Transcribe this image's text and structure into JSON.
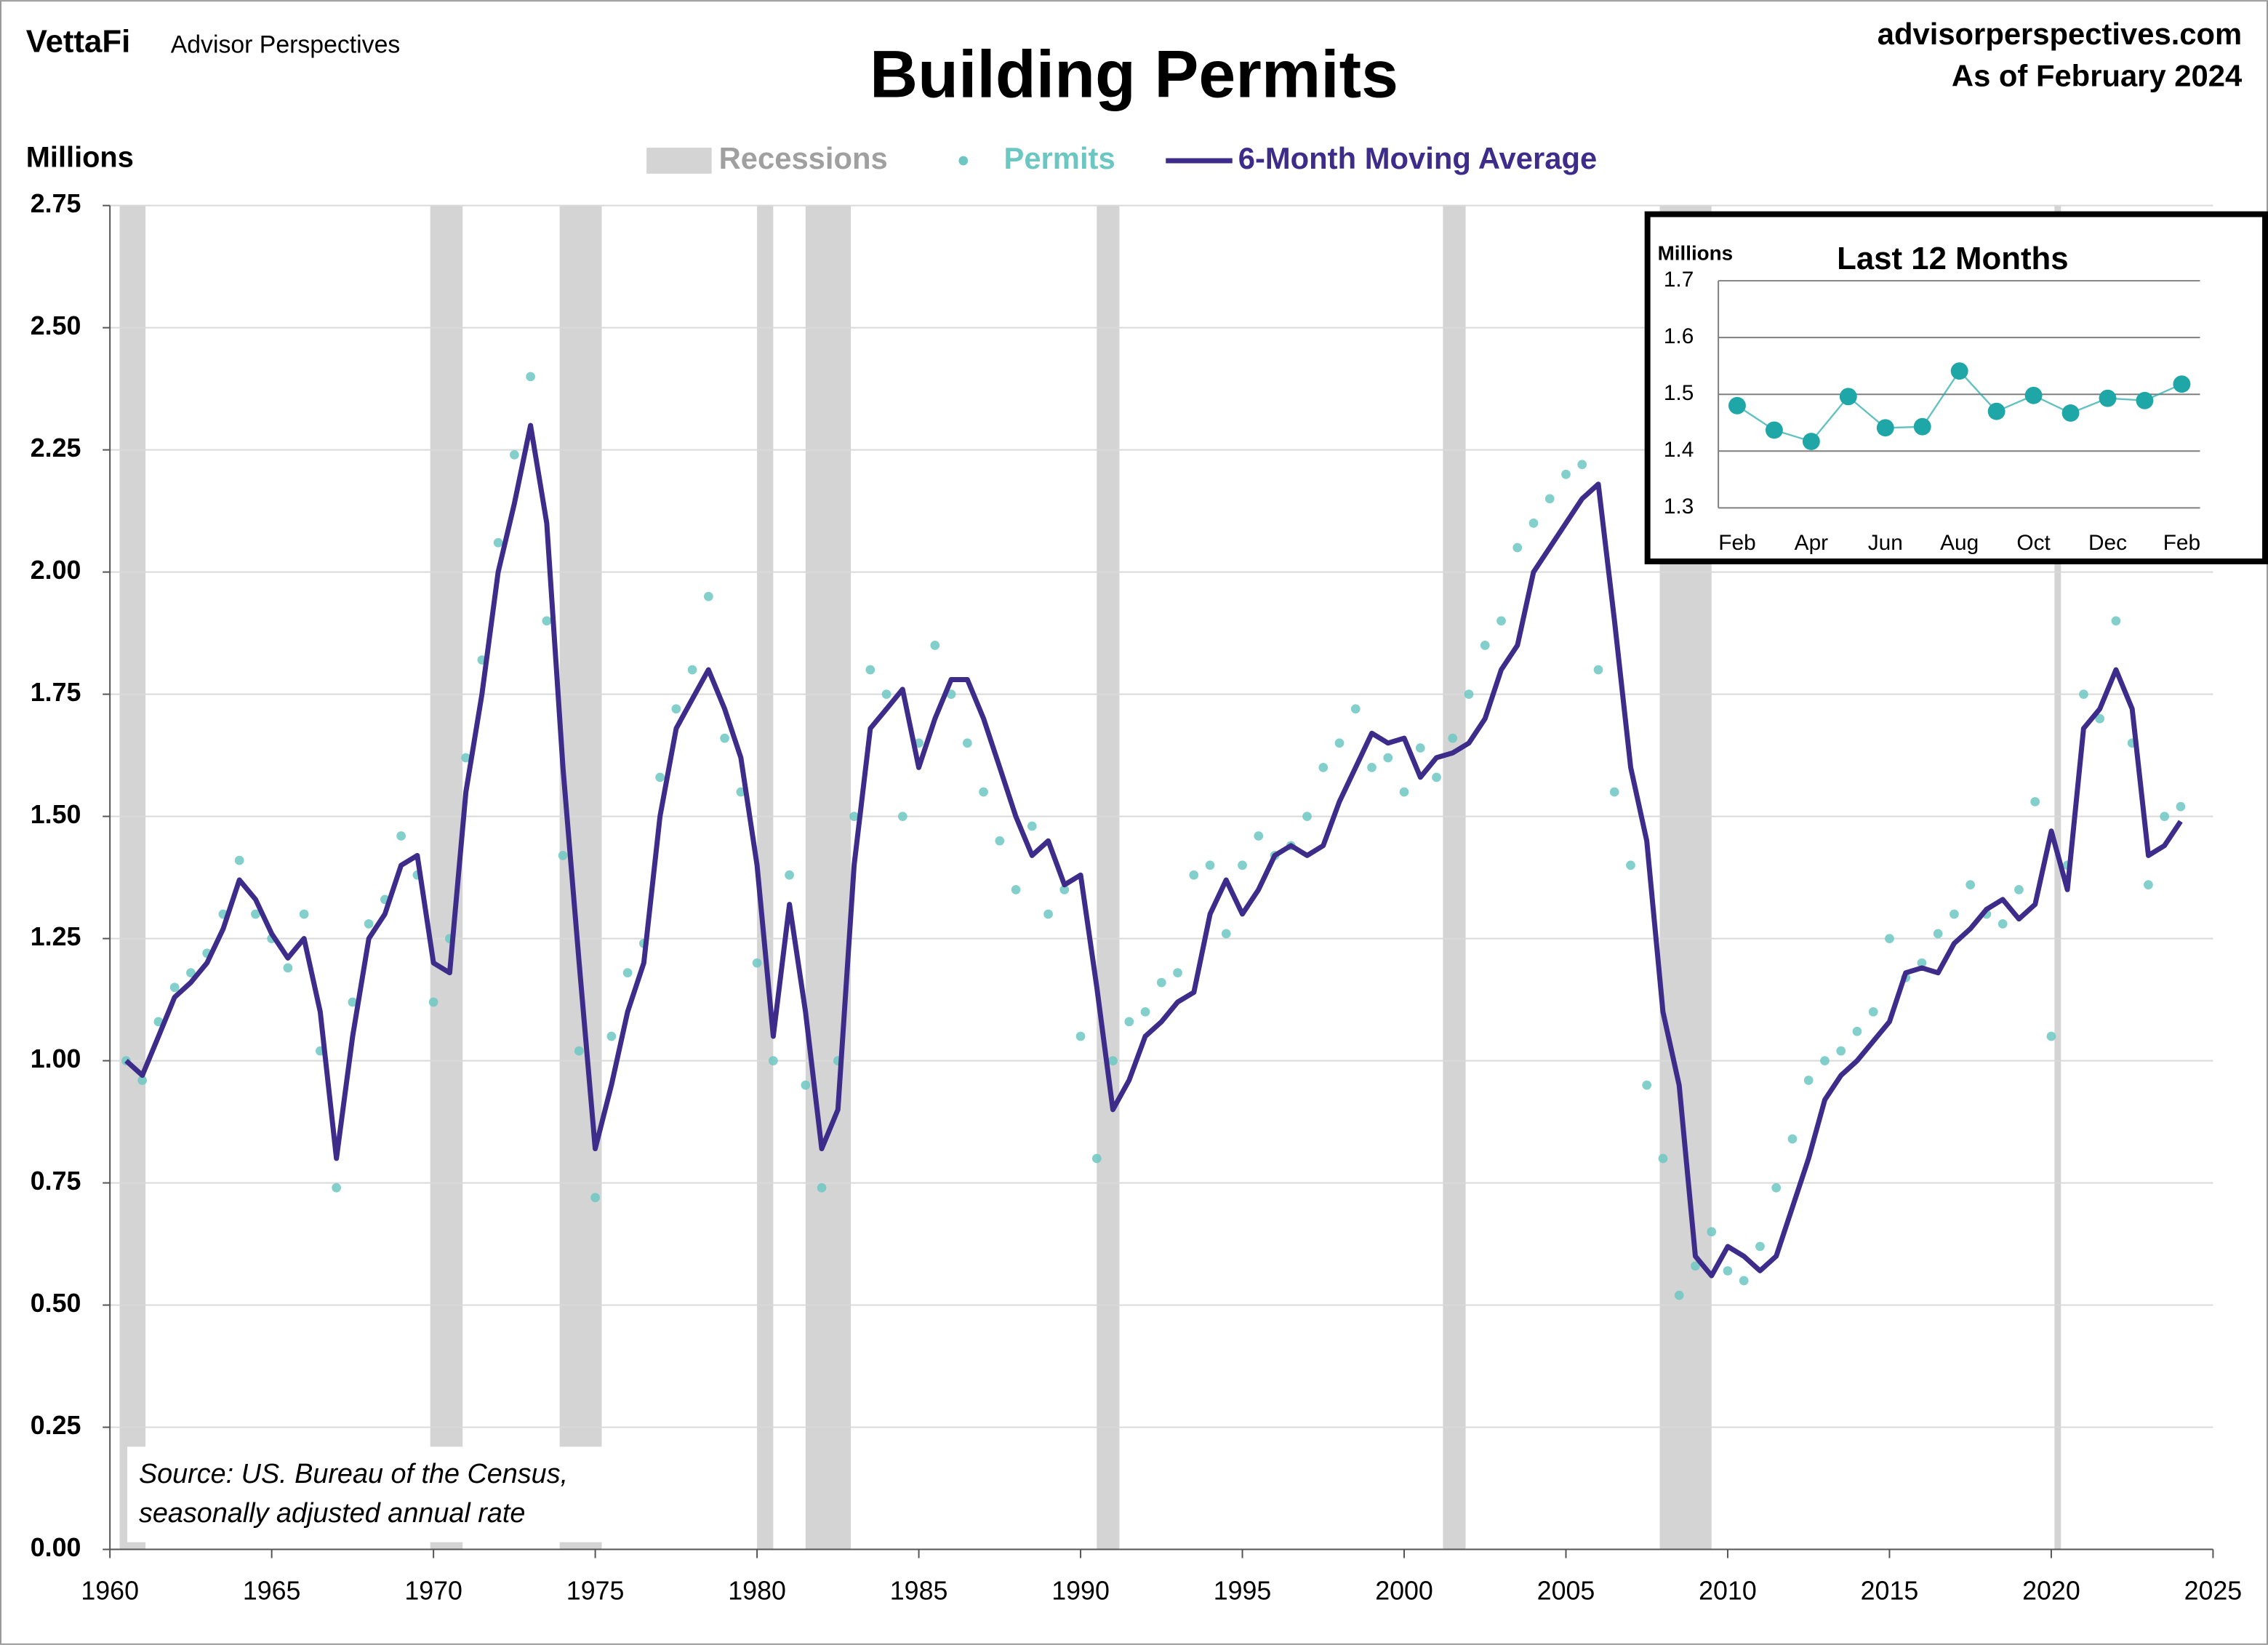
{
  "chart_data": {
    "type": "scatter-line",
    "title": "Building Permits",
    "brand": "VettaFi",
    "brand_sub": "Advisor Perspectives",
    "site": "advisorperspectives.com",
    "as_of": "As of February 2024",
    "ylabel": "Millions",
    "source_lines": [
      "Source: US. Bureau of the Census,",
      "seasonally adjusted annual rate"
    ],
    "recessions": {
      "name": "Recessions",
      "color": "#d4d4d4",
      "spans": [
        [
          1960.3,
          1961.1
        ],
        [
          1969.9,
          1970.9
        ],
        [
          1973.9,
          1975.2
        ],
        [
          1980.0,
          1980.5
        ],
        [
          1981.5,
          1982.9
        ],
        [
          1990.5,
          1991.2
        ],
        [
          2001.2,
          2001.9
        ],
        [
          2007.9,
          2009.5
        ],
        [
          2020.1,
          2020.3
        ]
      ]
    },
    "x": [
      1960.5,
      1961.0,
      1961.5,
      1962.0,
      1962.5,
      1963.0,
      1963.5,
      1964.0,
      1964.5,
      1965.0,
      1965.5,
      1966.0,
      1966.5,
      1967.0,
      1967.5,
      1968.0,
      1968.5,
      1969.0,
      1969.5,
      1970.0,
      1970.5,
      1971.0,
      1971.5,
      1972.0,
      1972.5,
      1973.0,
      1973.5,
      1974.0,
      1974.5,
      1975.0,
      1975.5,
      1976.0,
      1976.5,
      1977.0,
      1977.5,
      1978.0,
      1978.5,
      1979.0,
      1979.5,
      1980.0,
      1980.5,
      1981.0,
      1981.5,
      1982.0,
      1982.5,
      1983.0,
      1983.5,
      1984.0,
      1984.5,
      1985.0,
      1985.5,
      1986.0,
      1986.5,
      1987.0,
      1987.5,
      1988.0,
      1988.5,
      1989.0,
      1989.5,
      1990.0,
      1990.5,
      1991.0,
      1991.5,
      1992.0,
      1992.5,
      1993.0,
      1993.5,
      1994.0,
      1994.5,
      1995.0,
      1995.5,
      1996.0,
      1996.5,
      1997.0,
      1997.5,
      1998.0,
      1998.5,
      1999.0,
      1999.5,
      2000.0,
      2000.5,
      2001.0,
      2001.5,
      2002.0,
      2002.5,
      2003.0,
      2003.5,
      2004.0,
      2004.5,
      2005.0,
      2005.5,
      2006.0,
      2006.5,
      2007.0,
      2007.5,
      2008.0,
      2008.5,
      2009.0,
      2009.5,
      2010.0,
      2010.5,
      2011.0,
      2011.5,
      2012.0,
      2012.5,
      2013.0,
      2013.5,
      2014.0,
      2014.5,
      2015.0,
      2015.5,
      2016.0,
      2016.5,
      2017.0,
      2017.5,
      2018.0,
      2018.5,
      2019.0,
      2019.5,
      2020.0,
      2020.5,
      2021.0,
      2021.5,
      2022.0,
      2022.5,
      2023.0,
      2023.5,
      2024.0
    ],
    "series": [
      {
        "name": "Permits",
        "color": "#6cc7c3",
        "values": [
          1.0,
          0.96,
          1.08,
          1.15,
          1.18,
          1.22,
          1.3,
          1.41,
          1.3,
          1.25,
          1.19,
          1.3,
          1.02,
          0.74,
          1.12,
          1.28,
          1.33,
          1.46,
          1.38,
          1.12,
          1.25,
          1.62,
          1.82,
          2.06,
          2.24,
          2.4,
          1.9,
          1.42,
          1.02,
          0.72,
          1.05,
          1.18,
          1.24,
          1.58,
          1.72,
          1.8,
          1.95,
          1.66,
          1.55,
          1.2,
          1.0,
          1.38,
          0.95,
          0.74,
          1.0,
          1.5,
          1.8,
          1.75,
          1.5,
          1.65,
          1.85,
          1.75,
          1.65,
          1.55,
          1.45,
          1.35,
          1.48,
          1.3,
          1.35,
          1.05,
          0.8,
          1.0,
          1.08,
          1.1,
          1.16,
          1.18,
          1.38,
          1.4,
          1.26,
          1.4,
          1.46,
          1.42,
          1.44,
          1.5,
          1.6,
          1.65,
          1.72,
          1.6,
          1.62,
          1.55,
          1.64,
          1.58,
          1.66,
          1.75,
          1.85,
          1.9,
          2.05,
          2.1,
          2.15,
          2.2,
          2.22,
          1.8,
          1.55,
          1.4,
          0.95,
          0.8,
          0.52,
          0.58,
          0.65,
          0.57,
          0.55,
          0.62,
          0.74,
          0.84,
          0.96,
          1.0,
          1.02,
          1.06,
          1.1,
          1.25,
          1.17,
          1.2,
          1.26,
          1.3,
          1.36,
          1.3,
          1.28,
          1.35,
          1.53,
          1.05,
          1.4,
          1.75,
          1.7,
          1.9,
          1.65,
          1.36,
          1.5,
          1.52
        ]
      },
      {
        "name": "6-Month Moving Average",
        "color": "#3d2c8a",
        "values": [
          1.0,
          0.97,
          1.05,
          1.13,
          1.16,
          1.2,
          1.27,
          1.37,
          1.33,
          1.26,
          1.21,
          1.25,
          1.1,
          0.8,
          1.05,
          1.25,
          1.3,
          1.4,
          1.42,
          1.2,
          1.18,
          1.55,
          1.75,
          2.0,
          2.14,
          2.3,
          2.1,
          1.6,
          1.2,
          0.82,
          0.95,
          1.1,
          1.2,
          1.5,
          1.68,
          1.74,
          1.8,
          1.72,
          1.62,
          1.4,
          1.05,
          1.32,
          1.1,
          0.82,
          0.9,
          1.4,
          1.68,
          1.72,
          1.76,
          1.6,
          1.7,
          1.78,
          1.78,
          1.7,
          1.6,
          1.5,
          1.42,
          1.45,
          1.36,
          1.38,
          1.15,
          0.9,
          0.96,
          1.05,
          1.08,
          1.12,
          1.14,
          1.3,
          1.37,
          1.3,
          1.35,
          1.42,
          1.44,
          1.42,
          1.44,
          1.53,
          1.6,
          1.67,
          1.65,
          1.66,
          1.58,
          1.62,
          1.63,
          1.65,
          1.7,
          1.8,
          1.85,
          2.0,
          2.05,
          2.1,
          2.15,
          2.18,
          1.9,
          1.6,
          1.45,
          1.1,
          0.95,
          0.6,
          0.56,
          0.62,
          0.6,
          0.57,
          0.6,
          0.7,
          0.8,
          0.92,
          0.97,
          1.0,
          1.04,
          1.08,
          1.18,
          1.19,
          1.18,
          1.24,
          1.27,
          1.31,
          1.33,
          1.29,
          1.32,
          1.47,
          1.35,
          1.68,
          1.72,
          1.8,
          1.72,
          1.42,
          1.44,
          1.49
        ]
      }
    ],
    "xlim": [
      1960,
      2025
    ],
    "xticks": [
      1960,
      1965,
      1970,
      1975,
      1980,
      1985,
      1990,
      1995,
      2000,
      2005,
      2010,
      2015,
      2020,
      2025
    ],
    "ylim": [
      0,
      2.75
    ],
    "yticks": [
      {
        "value": 0,
        "label": "0.00"
      },
      {
        "value": 0.25,
        "label": "0.25"
      },
      {
        "value": 0.5,
        "label": "0.50"
      },
      {
        "value": 0.75,
        "label": "0.75"
      },
      {
        "value": 1,
        "label": "1.00"
      },
      {
        "value": 1.25,
        "label": "1.25"
      },
      {
        "value": 1.5,
        "label": "1.50"
      },
      {
        "value": 1.75,
        "label": "1.75"
      },
      {
        "value": 2,
        "label": "2.00"
      },
      {
        "value": 2.25,
        "label": "2.25"
      },
      {
        "value": 2.5,
        "label": "2.50"
      },
      {
        "value": 2.75,
        "label": "2.75"
      }
    ],
    "grid": true,
    "inset": {
      "title": "Last 12 Months",
      "ylabel": "Millions",
      "color": "#1fa6a6",
      "categories": [
        "Feb",
        null,
        "Apr",
        null,
        "Jun",
        null,
        "Aug",
        null,
        "Oct",
        null,
        "Dec",
        null,
        "Feb"
      ],
      "values": [
        1.48,
        1.437,
        1.417,
        1.496,
        1.441,
        1.443,
        1.541,
        1.47,
        1.498,
        1.467,
        1.493,
        1.489,
        1.518
      ],
      "ylim": [
        1.3,
        1.7
      ],
      "yticks": [
        1.3,
        1.4,
        1.5,
        1.6,
        1.7
      ],
      "grid": true
    }
  }
}
